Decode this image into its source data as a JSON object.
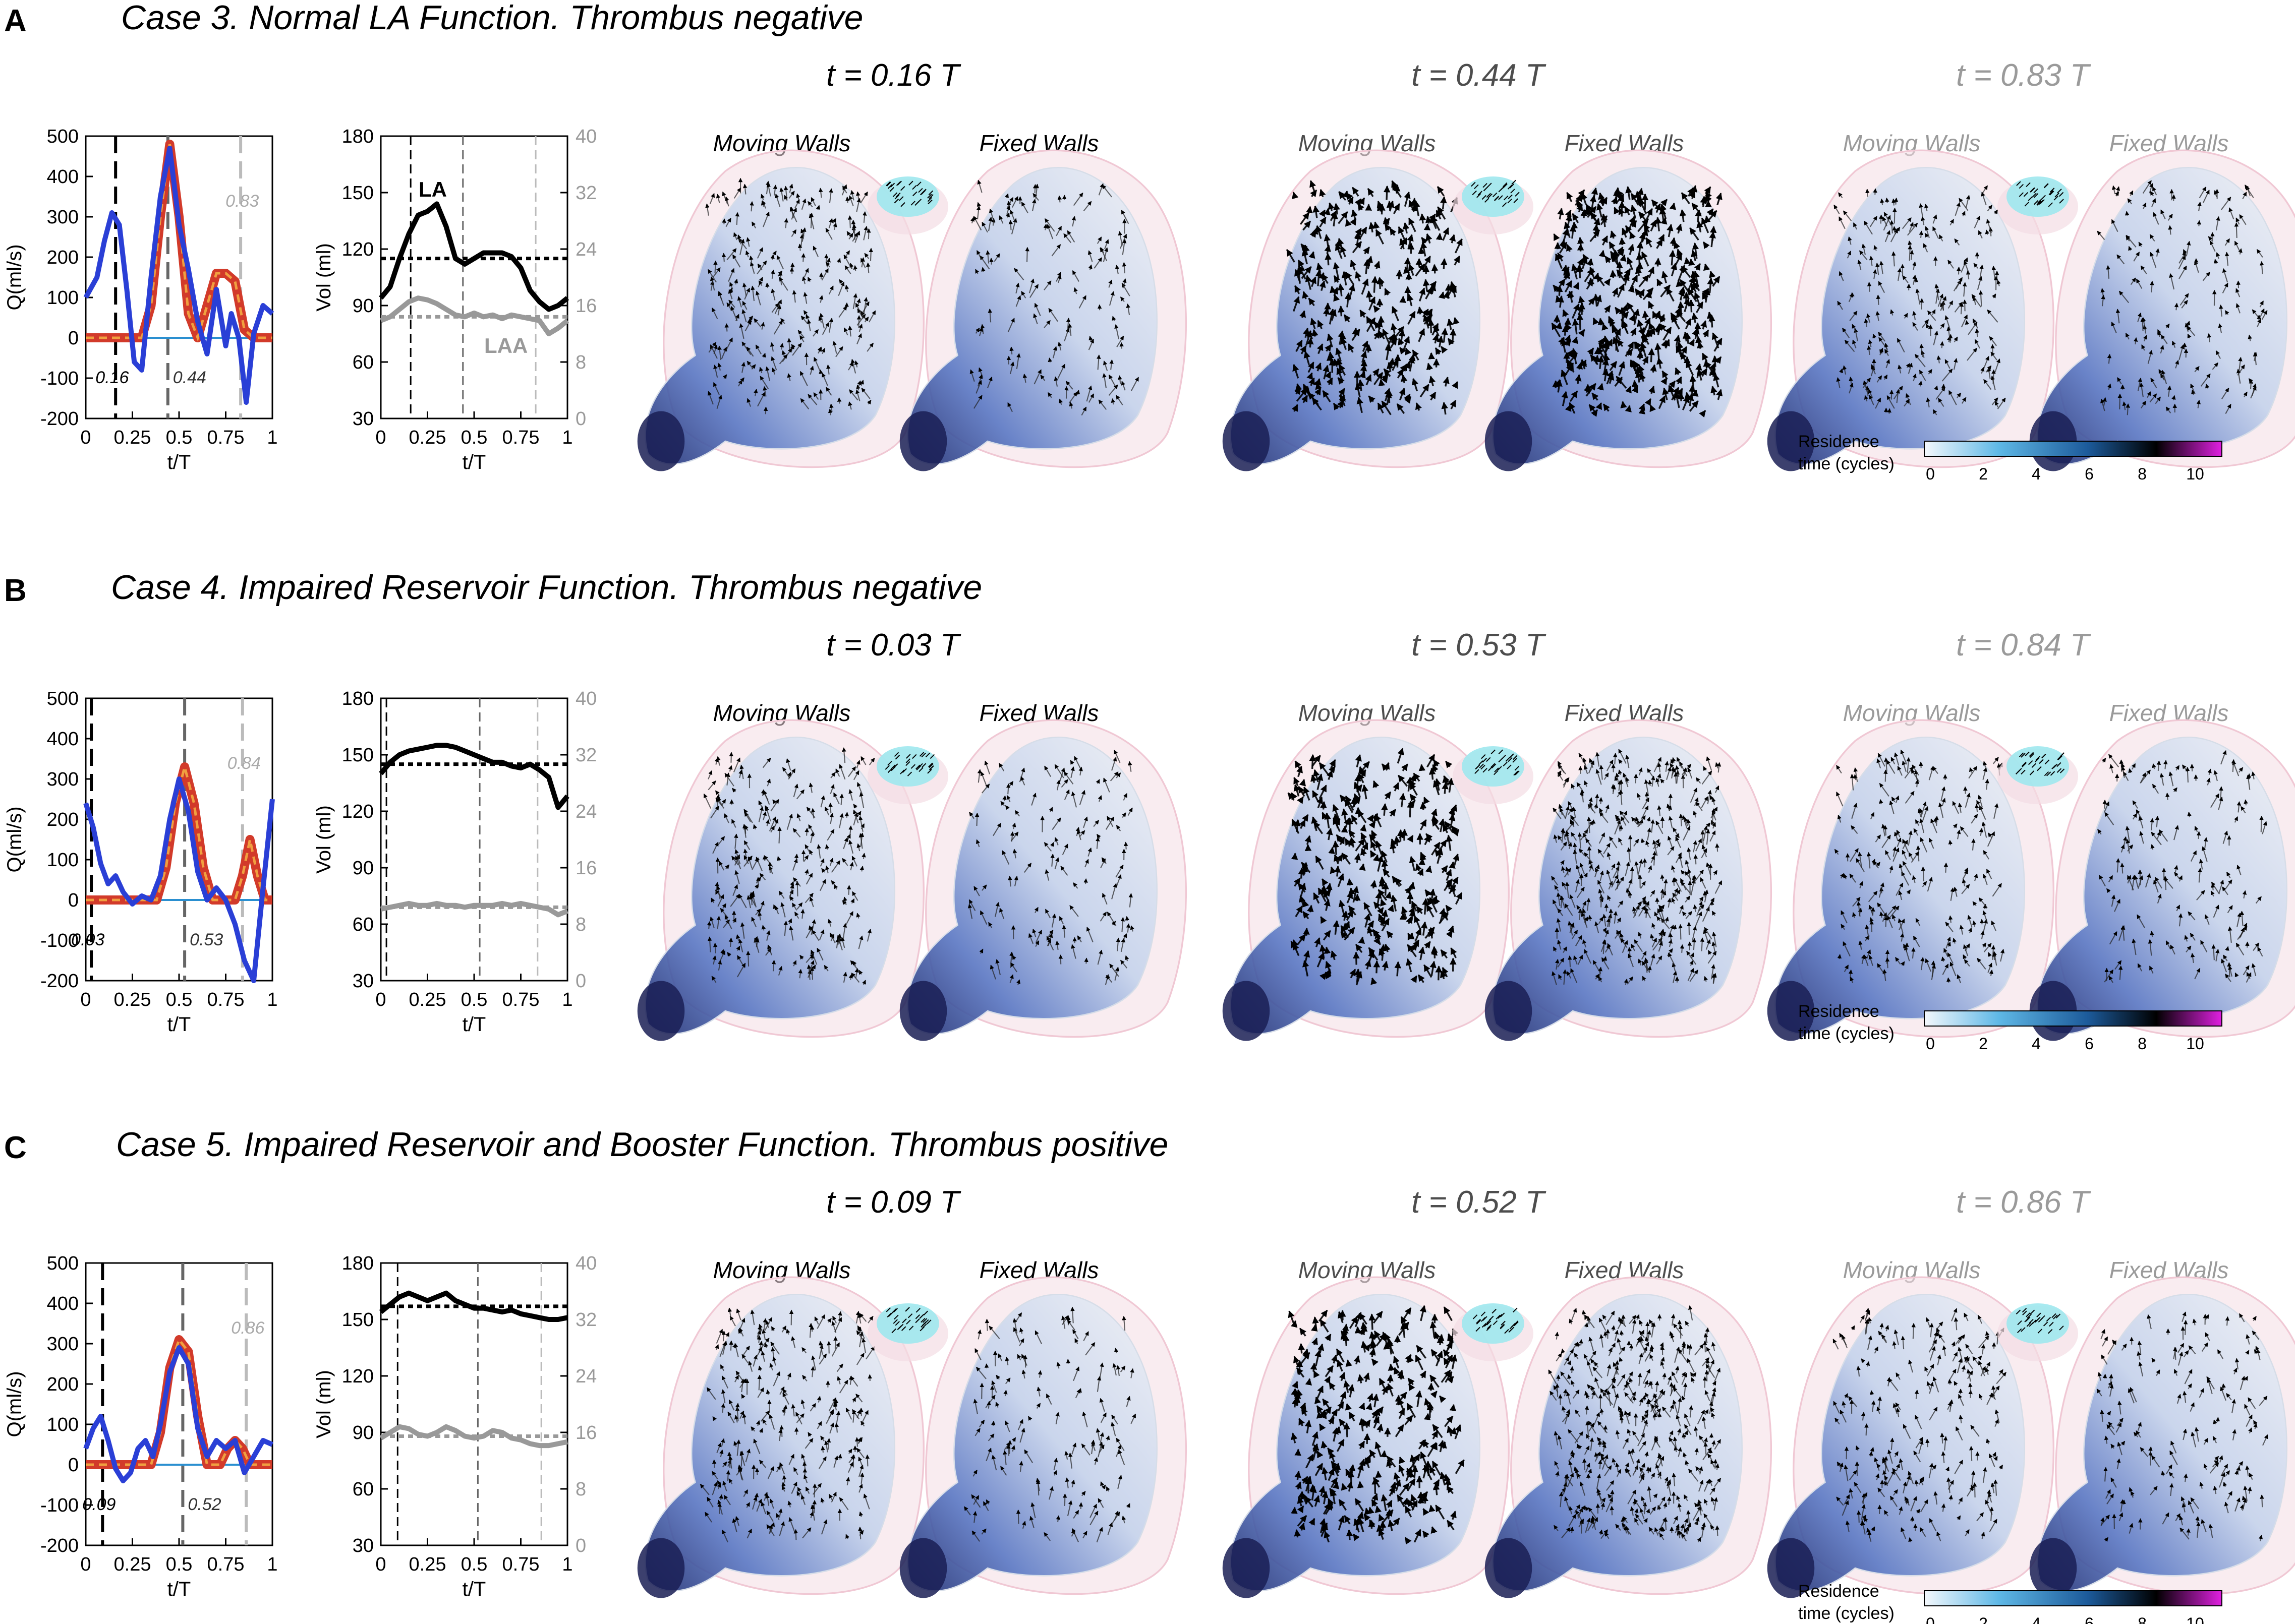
{
  "common": {
    "moving_label": "Moving Walls",
    "fixed_label": "Fixed Walls",
    "q_ylabel": "Q(ml/s)",
    "vol_ylabel": "Vol (ml)",
    "xlabel": "t/T",
    "la_label": "LA",
    "laa_label": "LAA",
    "colorbar": {
      "title_line1": "Residence",
      "title_line2": "time (cycles)",
      "ticks": [
        "0",
        "2",
        "4",
        "6",
        "8",
        "10"
      ],
      "stops": [
        "#f4f8fc",
        "#5fb8e6",
        "#1c5a9a",
        "#000000",
        "#e020e0"
      ]
    },
    "colors": {
      "mitral": "#d23a2a",
      "pv": "#2a3fd6",
      "pv_light": "#4aa8e0",
      "la": "#000000",
      "laa": "#999999",
      "mean_la": "#000000",
      "mean_laa": "#999999"
    }
  },
  "panels": [
    {
      "letter": "A",
      "title": "Case 3. Normal LA Function. Thrombus negative",
      "times": [
        "t = 0.16 T",
        "t = 0.44 T",
        "t = 0.83 T"
      ],
      "marker_labels": [
        "0.16",
        "0.44",
        "0.83"
      ],
      "show_colorbar": true,
      "show_la_laa": true
    },
    {
      "letter": "B",
      "title": "Case 4. Impaired Reservoir Function. Thrombus negative",
      "times": [
        "t = 0.03 T",
        "t = 0.53 T",
        "t = 0.84 T"
      ],
      "marker_labels": [
        "0.03",
        "0.53",
        "0.84"
      ],
      "show_colorbar": true,
      "show_la_laa": false
    },
    {
      "letter": "C",
      "title": "Case 5. Impaired Reservoir and Booster Function. Thrombus positive",
      "times": [
        "t = 0.09 T",
        "t = 0.52 T",
        "t = 0.86 T"
      ],
      "marker_labels": [
        "0.09",
        "0.52",
        "0.86"
      ],
      "show_colorbar": true,
      "show_la_laa": false
    }
  ],
  "chart_data": [
    {
      "type": "line",
      "panel": "A",
      "chart": "flow",
      "ylabel": "Q(ml/s)",
      "xlabel": "t/T",
      "xlim": [
        0,
        1
      ],
      "ylim": [
        -200,
        500
      ],
      "xticks": [
        "0",
        "0.25",
        "0.5",
        "0.75",
        "1"
      ],
      "yticks": [
        "-200",
        "-100",
        "0",
        "100",
        "200",
        "300",
        "400",
        "500"
      ],
      "markers": [
        0.16,
        0.44,
        0.83
      ],
      "series": [
        {
          "role": "mitral",
          "x": [
            0,
            0.3,
            0.35,
            0.4,
            0.45,
            0.5,
            0.55,
            0.6,
            0.65,
            0.7,
            0.75,
            0.8,
            0.85,
            0.9,
            1
          ],
          "y": [
            0,
            0,
            80,
            300,
            480,
            300,
            60,
            0,
            80,
            160,
            160,
            140,
            20,
            0,
            0
          ]
        },
        {
          "role": "pv",
          "x": [
            0,
            0.06,
            0.1,
            0.14,
            0.18,
            0.22,
            0.26,
            0.3,
            0.35,
            0.4,
            0.45,
            0.5,
            0.55,
            0.6,
            0.65,
            0.7,
            0.75,
            0.78,
            0.82,
            0.86,
            0.9,
            0.95,
            1
          ],
          "y": [
            100,
            150,
            240,
            310,
            280,
            120,
            -60,
            -80,
            150,
            350,
            470,
            280,
            170,
            40,
            -40,
            120,
            -20,
            60,
            0,
            -160,
            10,
            80,
            60
          ]
        }
      ]
    },
    {
      "type": "line",
      "panel": "A",
      "chart": "volume",
      "ylabel": "Vol (ml)",
      "xlabel": "t/T",
      "xlim": [
        0,
        1
      ],
      "ylim": [
        30,
        180
      ],
      "y2lim": [
        0,
        40
      ],
      "xticks": [
        "0",
        "0.25",
        "0.5",
        "0.75",
        "1"
      ],
      "yticks": [
        "30",
        "60",
        "90",
        "120",
        "150",
        "180"
      ],
      "y2ticks": [
        "0",
        "8",
        "16",
        "24",
        "32",
        "40"
      ],
      "markers": [
        0.16,
        0.44,
        0.83
      ],
      "la_mean": 115,
      "laa_mean": 84,
      "series": [
        {
          "role": "la",
          "x": [
            0,
            0.05,
            0.1,
            0.15,
            0.2,
            0.25,
            0.3,
            0.35,
            0.4,
            0.45,
            0.5,
            0.55,
            0.6,
            0.65,
            0.7,
            0.75,
            0.8,
            0.85,
            0.9,
            0.95,
            1
          ],
          "y": [
            94,
            100,
            115,
            128,
            138,
            140,
            144,
            132,
            115,
            112,
            115,
            118,
            118,
            118,
            116,
            110,
            98,
            92,
            88,
            90,
            94
          ]
        },
        {
          "role": "laa",
          "x": [
            0,
            0.05,
            0.1,
            0.15,
            0.2,
            0.25,
            0.3,
            0.35,
            0.4,
            0.45,
            0.5,
            0.55,
            0.6,
            0.65,
            0.7,
            0.75,
            0.8,
            0.85,
            0.9,
            0.95,
            1
          ],
          "y": [
            82,
            84,
            88,
            92,
            94,
            93,
            91,
            88,
            85,
            84,
            86,
            84,
            85,
            83,
            85,
            84,
            83,
            82,
            75,
            78,
            82
          ]
        }
      ]
    },
    {
      "type": "line",
      "panel": "B",
      "chart": "flow",
      "ylabel": "Q(ml/s)",
      "xlabel": "t/T",
      "xlim": [
        0,
        1
      ],
      "ylim": [
        -200,
        500
      ],
      "xticks": [
        "0",
        "0.25",
        "0.5",
        "0.75",
        "1"
      ],
      "yticks": [
        "-200",
        "-100",
        "0",
        "100",
        "200",
        "300",
        "400",
        "500"
      ],
      "markers": [
        0.03,
        0.53,
        0.84
      ],
      "series": [
        {
          "role": "mitral",
          "x": [
            0,
            0.38,
            0.43,
            0.48,
            0.53,
            0.58,
            0.63,
            0.68,
            0.8,
            0.84,
            0.88,
            0.92,
            0.96,
            1
          ],
          "y": [
            0,
            0,
            80,
            240,
            330,
            240,
            80,
            0,
            0,
            60,
            150,
            60,
            0,
            0
          ]
        },
        {
          "role": "pv",
          "x": [
            0,
            0.04,
            0.08,
            0.12,
            0.16,
            0.2,
            0.25,
            0.3,
            0.35,
            0.4,
            0.45,
            0.5,
            0.55,
            0.6,
            0.65,
            0.7,
            0.75,
            0.8,
            0.85,
            0.9,
            0.95,
            1
          ],
          "y": [
            240,
            180,
            90,
            40,
            60,
            20,
            -10,
            10,
            0,
            60,
            200,
            300,
            220,
            70,
            0,
            30,
            0,
            -60,
            -150,
            -200,
            30,
            250
          ]
        }
      ]
    },
    {
      "type": "line",
      "panel": "B",
      "chart": "volume",
      "ylabel": "Vol (ml)",
      "xlabel": "t/T",
      "xlim": [
        0,
        1
      ],
      "ylim": [
        30,
        180
      ],
      "y2lim": [
        0,
        40
      ],
      "xticks": [
        "0",
        "0.25",
        "0.5",
        "0.75",
        "1"
      ],
      "yticks": [
        "30",
        "60",
        "90",
        "120",
        "150",
        "180"
      ],
      "y2ticks": [
        "0",
        "8",
        "16",
        "24",
        "32",
        "40"
      ],
      "markers": [
        0.03,
        0.53,
        0.84
      ],
      "la_mean": 145,
      "laa_mean": 69,
      "series": [
        {
          "role": "la",
          "x": [
            0,
            0.05,
            0.1,
            0.15,
            0.2,
            0.25,
            0.3,
            0.35,
            0.4,
            0.45,
            0.5,
            0.55,
            0.6,
            0.65,
            0.7,
            0.75,
            0.8,
            0.85,
            0.9,
            0.95,
            1
          ],
          "y": [
            140,
            146,
            150,
            152,
            153,
            154,
            155,
            155,
            154,
            152,
            150,
            148,
            146,
            146,
            144,
            143,
            145,
            142,
            138,
            122,
            128
          ]
        },
        {
          "role": "laa",
          "x": [
            0,
            0.05,
            0.1,
            0.15,
            0.2,
            0.25,
            0.3,
            0.35,
            0.4,
            0.45,
            0.5,
            0.55,
            0.6,
            0.65,
            0.7,
            0.75,
            0.8,
            0.85,
            0.9,
            0.95,
            1
          ],
          "y": [
            68,
            69,
            70,
            71,
            70,
            70,
            71,
            70,
            70,
            69,
            70,
            70,
            70,
            71,
            70,
            71,
            70,
            69,
            68,
            65,
            67
          ]
        }
      ]
    },
    {
      "type": "line",
      "panel": "C",
      "chart": "flow",
      "ylabel": "Q(ml/s)",
      "xlabel": "t/T",
      "xlim": [
        0,
        1
      ],
      "ylim": [
        -200,
        500
      ],
      "xticks": [
        "0",
        "0.25",
        "0.5",
        "0.75",
        "1"
      ],
      "yticks": [
        "-200",
        "-100",
        "0",
        "100",
        "200",
        "300",
        "400",
        "500"
      ],
      "markers": [
        0.09,
        0.52,
        0.86
      ],
      "series": [
        {
          "role": "mitral",
          "x": [
            0,
            0.35,
            0.4,
            0.45,
            0.5,
            0.55,
            0.6,
            0.65,
            0.72,
            0.76,
            0.8,
            0.84,
            0.88,
            0.92,
            1
          ],
          "y": [
            0,
            0,
            80,
            240,
            310,
            280,
            120,
            0,
            0,
            40,
            60,
            40,
            0,
            0,
            0
          ]
        },
        {
          "role": "pv",
          "x": [
            0,
            0.04,
            0.08,
            0.12,
            0.16,
            0.2,
            0.24,
            0.28,
            0.32,
            0.36,
            0.4,
            0.45,
            0.5,
            0.55,
            0.6,
            0.65,
            0.7,
            0.75,
            0.8,
            0.85,
            0.9,
            0.95,
            1
          ],
          "y": [
            40,
            90,
            120,
            60,
            -10,
            -40,
            -20,
            40,
            60,
            20,
            100,
            230,
            290,
            250,
            90,
            20,
            60,
            40,
            60,
            -20,
            20,
            60,
            50
          ]
        }
      ]
    },
    {
      "type": "line",
      "panel": "C",
      "chart": "volume",
      "ylabel": "Vol (ml)",
      "xlabel": "t/T",
      "xlim": [
        0,
        1
      ],
      "ylim": [
        30,
        180
      ],
      "y2lim": [
        0,
        40
      ],
      "xticks": [
        "0",
        "0.25",
        "0.5",
        "0.75",
        "1"
      ],
      "yticks": [
        "30",
        "60",
        "90",
        "120",
        "150",
        "180"
      ],
      "y2ticks": [
        "0",
        "8",
        "16",
        "24",
        "32",
        "40"
      ],
      "markers": [
        0.09,
        0.52,
        0.86
      ],
      "la_mean": 157,
      "laa_mean": 88,
      "series": [
        {
          "role": "la",
          "x": [
            0,
            0.05,
            0.1,
            0.15,
            0.2,
            0.25,
            0.3,
            0.35,
            0.4,
            0.45,
            0.5,
            0.55,
            0.6,
            0.65,
            0.7,
            0.75,
            0.8,
            0.85,
            0.9,
            0.95,
            1
          ],
          "y": [
            154,
            158,
            162,
            164,
            162,
            160,
            162,
            164,
            160,
            158,
            156,
            156,
            155,
            154,
            155,
            153,
            152,
            151,
            150,
            150,
            151
          ]
        },
        {
          "role": "laa",
          "x": [
            0,
            0.05,
            0.1,
            0.15,
            0.2,
            0.25,
            0.3,
            0.35,
            0.4,
            0.45,
            0.5,
            0.55,
            0.6,
            0.65,
            0.7,
            0.75,
            0.8,
            0.85,
            0.9,
            0.95,
            1
          ],
          "y": [
            87,
            90,
            93,
            92,
            89,
            88,
            90,
            93,
            91,
            88,
            87,
            88,
            91,
            90,
            87,
            86,
            84,
            83,
            83,
            84,
            85
          ]
        }
      ]
    }
  ]
}
